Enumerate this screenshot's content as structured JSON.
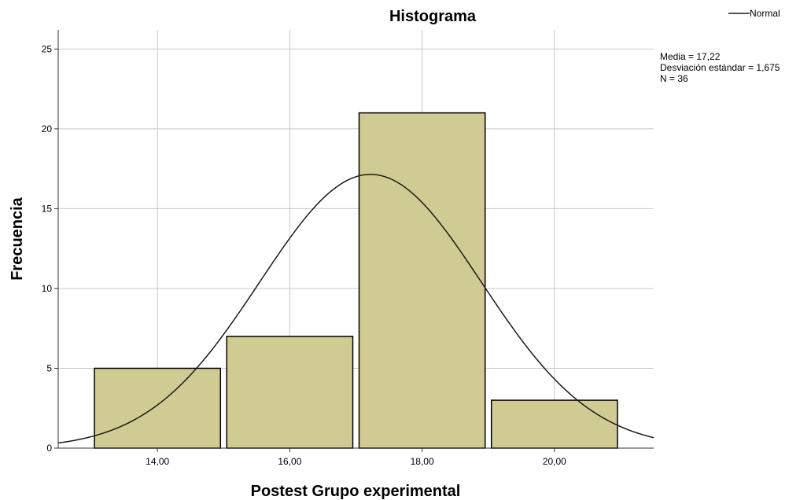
{
  "chart_data": {
    "type": "bar",
    "title": "Histograma",
    "xlabel": "Postest Grupo experimental",
    "ylabel": "Frecuencia",
    "categories": [
      "14,00",
      "16,00",
      "18,00",
      "20,00"
    ],
    "bins": [
      {
        "from": 13,
        "to": 15,
        "value": 5
      },
      {
        "from": 15,
        "to": 17,
        "value": 7
      },
      {
        "from": 17,
        "to": 19,
        "value": 21
      },
      {
        "from": 19,
        "to": 21,
        "value": 3
      }
    ],
    "values": [
      5,
      7,
      21,
      3
    ],
    "xlim": [
      12.5,
      21.5
    ],
    "ylim": [
      0,
      26.2
    ],
    "yticks": [
      0,
      5,
      10,
      15,
      20,
      25
    ],
    "xticks": [
      14,
      16,
      18,
      20
    ],
    "grid": true,
    "bar_color": "#d0cb92",
    "bar_edge_color": "#000000",
    "curve": {
      "name": "Normal",
      "mean": 17.22,
      "sd": 1.675,
      "n": 36,
      "bin_width": 2
    },
    "stats": [
      "Media = 17,22",
      "Desviación estándar = 1,675",
      "N = 36"
    ],
    "legend": {
      "position": "top-right",
      "entries": [
        "Normal"
      ]
    }
  }
}
